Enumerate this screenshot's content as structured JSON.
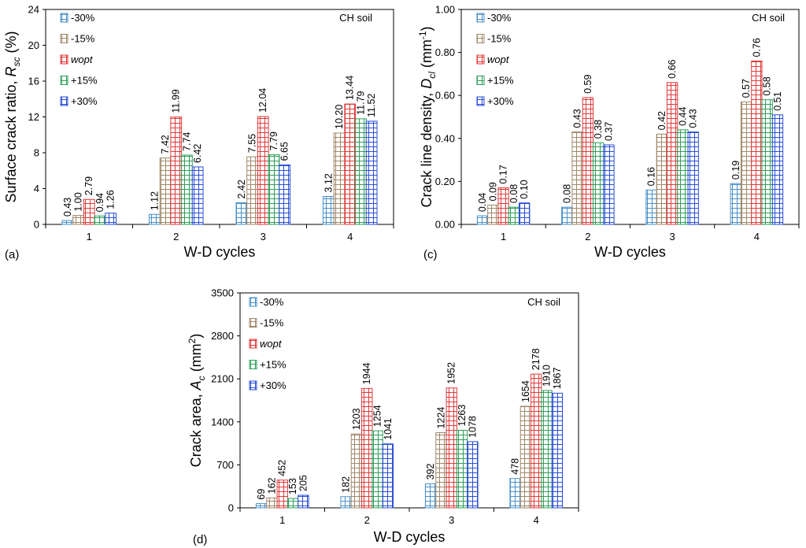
{
  "figure": {
    "legend": [
      "-30%",
      "-15%",
      "wopt",
      "+15%",
      "+30%"
    ],
    "series_colors": [
      "#4a90c8",
      "#a0896a",
      "#e03a3a",
      "#2f9e5a",
      "#2b4fd6"
    ]
  },
  "chart_data": [
    {
      "type": "bar",
      "panel_label": "(a)",
      "annotation": "CH soil",
      "xlabel": "W-D cycles",
      "ylabel_main": "Surface crack ratio, ",
      "ylabel_var": "R",
      "ylabel_sub": "sc",
      "ylabel_tail": " (%)",
      "categories": [
        "1",
        "2",
        "3",
        "4"
      ],
      "ylim": [
        0,
        24
      ],
      "yticks": [
        "0",
        "4",
        "8",
        "12",
        "16",
        "20",
        "24"
      ],
      "series": [
        {
          "name": "-30%",
          "values": [
            0.43,
            1.12,
            2.42,
            3.12
          ],
          "labels": [
            "0.43",
            "1.12",
            "2.42",
            "3.12"
          ]
        },
        {
          "name": "-15%",
          "values": [
            1.0,
            7.42,
            7.55,
            10.2
          ],
          "labels": [
            "1.00",
            "7.42",
            "7.55",
            "10.20"
          ]
        },
        {
          "name": "wopt",
          "values": [
            2.79,
            11.99,
            12.04,
            13.44
          ],
          "labels": [
            "2.79",
            "11.99",
            "12.04",
            "13.44"
          ]
        },
        {
          "name": "+15%",
          "values": [
            0.94,
            7.74,
            7.79,
            11.79
          ],
          "labels": [
            "0.94",
            "7.74",
            "7.79",
            "11.79"
          ]
        },
        {
          "name": "+30%",
          "values": [
            1.26,
            6.42,
            6.65,
            11.52
          ],
          "labels": [
            "1.26",
            "6.42",
            "6.65",
            "11.52"
          ]
        }
      ]
    },
    {
      "type": "bar",
      "panel_label": "(c)",
      "annotation": "CH soil",
      "xlabel": "W-D cycles",
      "ylabel_main": "Crack line density, ",
      "ylabel_var": "D",
      "ylabel_sub": "cl",
      "ylabel_tail": " (mm",
      "ylabel_sup": "-1",
      "ylabel_end": ")",
      "categories": [
        "1",
        "2",
        "3",
        "4"
      ],
      "ylim": [
        0,
        1.0
      ],
      "yticks": [
        "0.00",
        "0.20",
        "0.40",
        "0.60",
        "0.80",
        "1.00"
      ],
      "series": [
        {
          "name": "-30%",
          "values": [
            0.04,
            0.08,
            0.16,
            0.19
          ],
          "labels": [
            "0.04",
            "0.08",
            "0.16",
            "0.19"
          ]
        },
        {
          "name": "-15%",
          "values": [
            0.09,
            0.43,
            0.42,
            0.57
          ],
          "labels": [
            "0.09",
            "0.43",
            "0.42",
            "0.57"
          ]
        },
        {
          "name": "wopt",
          "values": [
            0.17,
            0.59,
            0.66,
            0.76
          ],
          "labels": [
            "0.17",
            "0.59",
            "0.66",
            "0.76"
          ]
        },
        {
          "name": "+15%",
          "values": [
            0.08,
            0.38,
            0.44,
            0.58
          ],
          "labels": [
            "0.08",
            "0.38",
            "0.44",
            "0.58"
          ]
        },
        {
          "name": "+30%",
          "values": [
            0.1,
            0.37,
            0.43,
            0.51
          ],
          "labels": [
            "0.10",
            "0.37",
            "0.43",
            "0.51"
          ]
        }
      ]
    },
    {
      "type": "bar",
      "panel_label": "(d)",
      "annotation": "CH soil",
      "xlabel": "W-D cycles",
      "ylabel_main": "Crack area, ",
      "ylabel_var": "A",
      "ylabel_sub": "c",
      "ylabel_tail": " (mm",
      "ylabel_sup": "2",
      "ylabel_end": ")",
      "categories": [
        "1",
        "2",
        "3",
        "4"
      ],
      "ylim": [
        0,
        3500
      ],
      "yticks": [
        "0",
        "700",
        "1400",
        "2100",
        "2800",
        "3500"
      ],
      "series": [
        {
          "name": "-30%",
          "values": [
            69,
            182,
            392,
            478
          ],
          "labels": [
            "69",
            "182",
            "392",
            "478"
          ]
        },
        {
          "name": "-15%",
          "values": [
            162,
            1203,
            1224,
            1654
          ],
          "labels": [
            "162",
            "1203",
            "1224",
            "1654"
          ]
        },
        {
          "name": "wopt",
          "values": [
            452,
            1944,
            1952,
            2178
          ],
          "labels": [
            "452",
            "1944",
            "1952",
            "2178"
          ]
        },
        {
          "name": "+15%",
          "values": [
            153,
            1254,
            1263,
            1910
          ],
          "labels": [
            "153",
            "1254",
            "1263",
            "1910"
          ]
        },
        {
          "name": "+30%",
          "values": [
            205,
            1041,
            1078,
            1867
          ],
          "labels": [
            "205",
            "1041",
            "1078",
            "1867"
          ]
        }
      ]
    }
  ]
}
